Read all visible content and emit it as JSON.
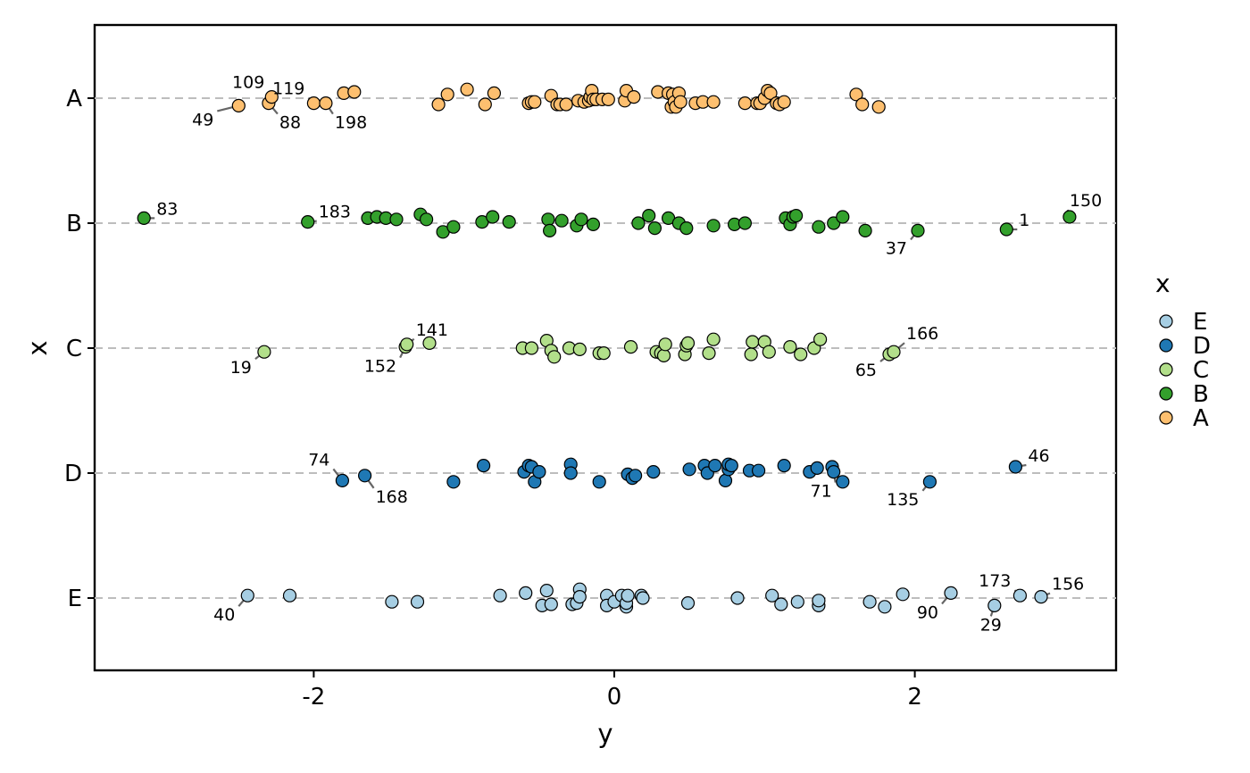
{
  "chart_data": {
    "type": "scatter",
    "xlabel": "y",
    "ylabel": "x",
    "xlim": [
      -3.4,
      3.34
    ],
    "categories": [
      "A",
      "B",
      "C",
      "D",
      "E"
    ],
    "x_ticks": [
      -2,
      0,
      2
    ],
    "x_tick_labels": [
      "-2",
      "0",
      "2"
    ],
    "grid": "dashed horizontal reference lines at each category",
    "legend": {
      "title": "x",
      "position": "right",
      "entries": [
        "E",
        "D",
        "C",
        "B",
        "A"
      ]
    },
    "colors": {
      "A": "#fdbf6f",
      "B": "#33a02c",
      "C": "#b2df8a",
      "D": "#1f78b4",
      "E": "#a6cee3"
    },
    "series": [
      {
        "category": "A",
        "points": [
          [
            -2.5,
            -0.06
          ],
          [
            -2.3,
            -0.04
          ],
          [
            -2.28,
            0.01
          ],
          [
            -2.0,
            -0.04
          ],
          [
            -1.92,
            -0.04
          ],
          [
            -1.8,
            0.04
          ],
          [
            -1.73,
            0.05
          ],
          [
            -1.17,
            -0.05
          ],
          [
            -1.11,
            0.03
          ],
          [
            -0.98,
            0.07
          ],
          [
            -0.86,
            -0.05
          ],
          [
            -0.8,
            0.04
          ],
          [
            -0.57,
            -0.04
          ],
          [
            -0.55,
            -0.03
          ],
          [
            -0.53,
            -0.03
          ],
          [
            -0.42,
            0.02
          ],
          [
            -0.38,
            -0.05
          ],
          [
            -0.36,
            -0.05
          ],
          [
            -0.32,
            -0.05
          ],
          [
            -0.24,
            -0.02
          ],
          [
            -0.2,
            -0.03
          ],
          [
            -0.17,
            -0.02
          ],
          [
            -0.16,
            0.01
          ],
          [
            -0.15,
            0.06
          ],
          [
            -0.14,
            -0.01
          ],
          [
            -0.12,
            -0.01
          ],
          [
            -0.08,
            -0.01
          ],
          [
            -0.04,
            -0.01
          ],
          [
            0.07,
            -0.02
          ],
          [
            0.08,
            0.06
          ],
          [
            0.13,
            0.01
          ],
          [
            0.29,
            0.05
          ],
          [
            0.36,
            0.04
          ],
          [
            0.38,
            -0.07
          ],
          [
            0.39,
            0.03
          ],
          [
            0.4,
            -0.03
          ],
          [
            0.41,
            -0.07
          ],
          [
            0.43,
            0.04
          ],
          [
            0.44,
            -0.03
          ],
          [
            0.54,
            -0.04
          ],
          [
            0.59,
            -0.03
          ],
          [
            0.66,
            -0.03
          ],
          [
            0.87,
            -0.04
          ],
          [
            0.95,
            -0.04
          ],
          [
            0.97,
            -0.04
          ],
          [
            1.0,
            0.0
          ],
          [
            1.02,
            0.06
          ],
          [
            1.04,
            0.04
          ],
          [
            1.08,
            -0.04
          ],
          [
            1.1,
            -0.05
          ],
          [
            1.13,
            -0.03
          ],
          [
            1.61,
            0.03
          ],
          [
            1.65,
            -0.05
          ],
          [
            1.76,
            -0.07
          ]
        ],
        "labels": [
          {
            "text": "49",
            "index": 0
          },
          {
            "text": "88",
            "index": 1
          },
          {
            "text": "109",
            "index": 2
          },
          {
            "text": "119",
            "index": 3
          },
          {
            "text": "198",
            "index": 4
          }
        ]
      },
      {
        "category": "B",
        "points": [
          [
            -3.13,
            0.04
          ],
          [
            -2.04,
            0.01
          ],
          [
            -1.64,
            0.04
          ],
          [
            -1.58,
            0.05
          ],
          [
            -1.52,
            0.04
          ],
          [
            -1.45,
            0.03
          ],
          [
            -1.29,
            0.07
          ],
          [
            -1.25,
            0.03
          ],
          [
            -1.14,
            -0.07
          ],
          [
            -1.07,
            -0.03
          ],
          [
            -0.88,
            0.01
          ],
          [
            -0.81,
            0.05
          ],
          [
            -0.7,
            0.01
          ],
          [
            -0.44,
            0.03
          ],
          [
            -0.43,
            -0.06
          ],
          [
            -0.35,
            0.02
          ],
          [
            -0.25,
            -0.02
          ],
          [
            -0.22,
            0.03
          ],
          [
            -0.14,
            -0.01
          ],
          [
            0.16,
            0.0
          ],
          [
            0.23,
            0.06
          ],
          [
            0.27,
            -0.04
          ],
          [
            0.36,
            0.04
          ],
          [
            0.43,
            0.0
          ],
          [
            0.48,
            -0.04
          ],
          [
            0.66,
            -0.02
          ],
          [
            0.8,
            -0.01
          ],
          [
            0.87,
            0.0
          ],
          [
            1.14,
            0.04
          ],
          [
            1.17,
            -0.01
          ],
          [
            1.19,
            0.05
          ],
          [
            1.21,
            0.06
          ],
          [
            1.36,
            -0.03
          ],
          [
            1.46,
            0.0
          ],
          [
            1.52,
            0.05
          ],
          [
            1.67,
            -0.06
          ],
          [
            2.02,
            -0.06
          ],
          [
            2.61,
            -0.05
          ],
          [
            3.03,
            0.05
          ]
        ],
        "labels": [
          {
            "text": "83",
            "index": 0
          },
          {
            "text": "183",
            "index": 1
          },
          {
            "text": "37",
            "index": 36
          },
          {
            "text": "1",
            "index": 37
          },
          {
            "text": "150",
            "index": 38
          }
        ]
      },
      {
        "category": "C",
        "points": [
          [
            -2.33,
            -0.03
          ],
          [
            -1.39,
            0.01
          ],
          [
            -1.38,
            0.03
          ],
          [
            -1.23,
            0.04
          ],
          [
            -0.61,
            0.0
          ],
          [
            -0.55,
            0.0
          ],
          [
            -0.45,
            0.06
          ],
          [
            -0.42,
            -0.02
          ],
          [
            -0.4,
            -0.07
          ],
          [
            -0.3,
            0.0
          ],
          [
            -0.23,
            -0.01
          ],
          [
            -0.1,
            -0.04
          ],
          [
            -0.07,
            -0.04
          ],
          [
            0.11,
            0.01
          ],
          [
            0.28,
            -0.03
          ],
          [
            0.31,
            -0.04
          ],
          [
            0.33,
            -0.06
          ],
          [
            0.34,
            0.03
          ],
          [
            0.47,
            -0.05
          ],
          [
            0.48,
            0.02
          ],
          [
            0.49,
            0.04
          ],
          [
            0.63,
            -0.04
          ],
          [
            0.66,
            0.07
          ],
          [
            0.91,
            -0.05
          ],
          [
            0.92,
            0.05
          ],
          [
            1.0,
            0.05
          ],
          [
            1.03,
            -0.03
          ],
          [
            1.17,
            0.01
          ],
          [
            1.24,
            -0.05
          ],
          [
            1.33,
            0.0
          ],
          [
            1.37,
            0.07
          ],
          [
            1.83,
            -0.05
          ],
          [
            1.86,
            -0.03
          ]
        ],
        "labels": [
          {
            "text": "19",
            "index": 0
          },
          {
            "text": "152",
            "index": 1
          },
          {
            "text": "141",
            "index": 2
          },
          {
            "text": "65",
            "index": 31
          },
          {
            "text": "166",
            "index": 32
          }
        ]
      },
      {
        "category": "D",
        "points": [
          [
            -1.81,
            -0.06
          ],
          [
            -1.66,
            -0.02
          ],
          [
            -1.07,
            -0.07
          ],
          [
            -0.87,
            0.06
          ],
          [
            -0.6,
            0.01
          ],
          [
            -0.57,
            0.06
          ],
          [
            -0.55,
            0.05
          ],
          [
            -0.53,
            -0.07
          ],
          [
            -0.5,
            0.01
          ],
          [
            -0.29,
            0.07
          ],
          [
            -0.29,
            0.0
          ],
          [
            -0.1,
            -0.07
          ],
          [
            0.09,
            -0.01
          ],
          [
            0.12,
            -0.04
          ],
          [
            0.14,
            -0.02
          ],
          [
            0.26,
            0.01
          ],
          [
            0.5,
            0.03
          ],
          [
            0.6,
            0.06
          ],
          [
            0.62,
            0.0
          ],
          [
            0.67,
            0.06
          ],
          [
            0.74,
            -0.06
          ],
          [
            0.76,
            0.03
          ],
          [
            0.76,
            0.07
          ],
          [
            0.78,
            0.06
          ],
          [
            0.9,
            0.02
          ],
          [
            0.96,
            0.02
          ],
          [
            1.13,
            0.06
          ],
          [
            1.3,
            0.01
          ],
          [
            1.35,
            0.04
          ],
          [
            1.45,
            0.05
          ],
          [
            1.46,
            0.01
          ],
          [
            1.52,
            -0.07
          ],
          [
            2.1,
            -0.07
          ],
          [
            2.67,
            0.05
          ]
        ],
        "labels": [
          {
            "text": "74",
            "index": 0
          },
          {
            "text": "168",
            "index": 1
          },
          {
            "text": "71",
            "index": 30
          },
          {
            "text": "135",
            "index": 32
          },
          {
            "text": "46",
            "index": 33
          }
        ]
      },
      {
        "category": "E",
        "points": [
          [
            -2.44,
            0.02
          ],
          [
            -2.16,
            0.02
          ],
          [
            -1.48,
            -0.03
          ],
          [
            -1.31,
            -0.03
          ],
          [
            -0.76,
            0.02
          ],
          [
            -0.59,
            0.04
          ],
          [
            -0.45,
            0.06
          ],
          [
            -0.48,
            -0.06
          ],
          [
            -0.42,
            -0.05
          ],
          [
            -0.28,
            -0.05
          ],
          [
            -0.25,
            -0.04
          ],
          [
            -0.23,
            0.07
          ],
          [
            -0.23,
            0.01
          ],
          [
            -0.05,
            0.02
          ],
          [
            -0.05,
            -0.06
          ],
          [
            0.0,
            -0.03
          ],
          [
            0.05,
            0.02
          ],
          [
            0.08,
            -0.07
          ],
          [
            0.08,
            -0.04
          ],
          [
            0.09,
            0.02
          ],
          [
            0.18,
            0.02
          ],
          [
            0.19,
            0.0
          ],
          [
            0.49,
            -0.04
          ],
          [
            0.82,
            0.0
          ],
          [
            1.05,
            0.02
          ],
          [
            1.11,
            -0.05
          ],
          [
            1.22,
            -0.03
          ],
          [
            1.36,
            -0.06
          ],
          [
            1.36,
            -0.02
          ],
          [
            1.7,
            -0.03
          ],
          [
            1.8,
            -0.07
          ],
          [
            1.92,
            0.03
          ],
          [
            2.24,
            0.04
          ],
          [
            2.53,
            -0.06
          ],
          [
            2.7,
            0.02
          ],
          [
            2.84,
            0.01
          ]
        ],
        "labels": [
          {
            "text": "40",
            "index": 0
          },
          {
            "text": "90",
            "index": 32
          },
          {
            "text": "29",
            "index": 33
          },
          {
            "text": "173",
            "index": 34
          },
          {
            "text": "156",
            "index": 35
          }
        ]
      }
    ]
  }
}
